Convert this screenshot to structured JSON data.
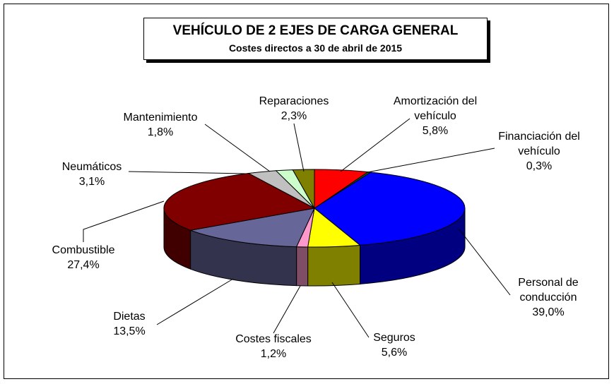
{
  "chart_data": {
    "type": "pie",
    "title": "VEHÍCULO DE 2 EJES DE CARGA GENERAL",
    "subtitle": "Costes directos a 30 de abril de 2015",
    "categories": [
      "Amortización del vehículo",
      "Financiación del vehículo",
      "Personal de conducción",
      "Seguros",
      "Costes fiscales",
      "Dietas",
      "Combustible",
      "Neumáticos",
      "Mantenimiento",
      "Reparaciones"
    ],
    "values": [
      5.8,
      0.3,
      39.0,
      5.6,
      1.2,
      13.5,
      27.4,
      3.1,
      1.8,
      2.3
    ],
    "value_labels": [
      "5,8%",
      "0,3%",
      "39,0%",
      "5,6%",
      "1,2%",
      "13,5%",
      "27,4%",
      "3,1%",
      "1,8%",
      "2,3%"
    ],
    "colors": [
      "#ff0000",
      "#008000",
      "#0000ff",
      "#ffff00",
      "#ff99cc",
      "#666699",
      "#800000",
      "#c0c0c0",
      "#ccffcc",
      "#808000"
    ]
  }
}
